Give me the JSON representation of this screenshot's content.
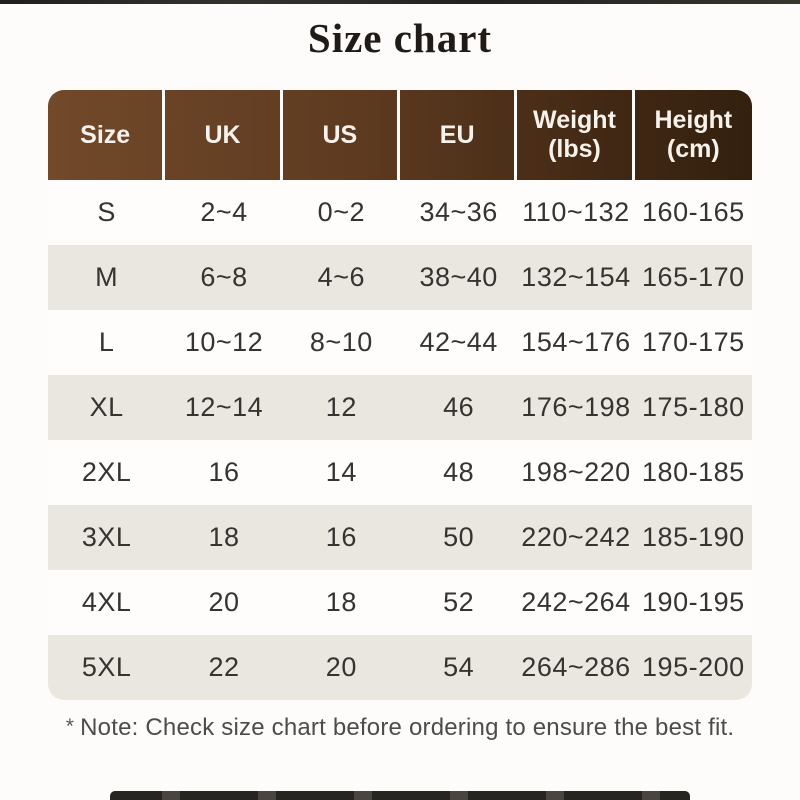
{
  "title": "Size chart",
  "note": {
    "marker": "*",
    "text": "Note: Check size chart before ordering to ensure the best fit."
  },
  "colors": {
    "header_gradient_left": "#72492a",
    "header_gradient_right": "#33200f",
    "header_text": "#f7f2ec",
    "row_bg": "#fefdfb",
    "row_alt_bg": "#eae7e0",
    "body_text": "#363330",
    "title_text": "#201b16",
    "note_text": "#4e4c4a",
    "page_bg": "#fdfcfa"
  },
  "chart_data": {
    "type": "table",
    "title": "Size chart",
    "columns": [
      {
        "label": "Size",
        "sub": ""
      },
      {
        "label": "UK",
        "sub": ""
      },
      {
        "label": "US",
        "sub": ""
      },
      {
        "label": "EU",
        "sub": ""
      },
      {
        "label": "Weight",
        "sub": "(lbs)"
      },
      {
        "label": "Height",
        "sub": "(cm)"
      }
    ],
    "rows": [
      {
        "cells": [
          "S",
          "2~4",
          "0~2",
          "34~36",
          "110~132",
          "160-165"
        ]
      },
      {
        "cells": [
          "M",
          "6~8",
          "4~6",
          "38~40",
          "132~154",
          "165-170"
        ]
      },
      {
        "cells": [
          "L",
          "10~12",
          "8~10",
          "42~44",
          "154~176",
          "170-175"
        ]
      },
      {
        "cells": [
          "XL",
          "12~14",
          "12",
          "46",
          "176~198",
          "175-180"
        ]
      },
      {
        "cells": [
          "2XL",
          "16",
          "14",
          "48",
          "198~220",
          "180-185"
        ]
      },
      {
        "cells": [
          "3XL",
          "18",
          "16",
          "50",
          "220~242",
          "185-190"
        ]
      },
      {
        "cells": [
          "4XL",
          "20",
          "18",
          "52",
          "242~264",
          "190-195"
        ]
      },
      {
        "cells": [
          "5XL",
          "22",
          "20",
          "54",
          "264~286",
          "195-200"
        ]
      }
    ]
  }
}
